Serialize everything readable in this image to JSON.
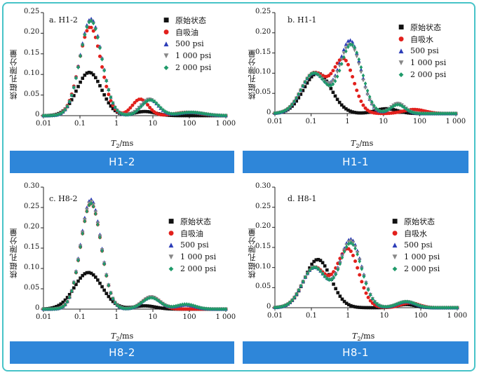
{
  "chart_data": [
    {
      "panel_label": "a. H1-2",
      "banner": "H1-2",
      "type": "scatter",
      "title": "",
      "xlabel": "T₂/ms",
      "ylabel": "核磁孔隙分量",
      "xscale": "log",
      "xlim": [
        0.01,
        1000
      ],
      "ylim": [
        0,
        0.25
      ],
      "xticks": [
        "0.01",
        "0.1",
        "1",
        "10",
        "100",
        "1 000"
      ],
      "yticks": [
        "0",
        "0.05",
        "0.10",
        "0.15",
        "0.20",
        "0.25"
      ],
      "legend": "top-right",
      "series": [
        {
          "name": "原始状态",
          "marker": "square",
          "color": "#111111",
          "peaks": [
            [
              0.18,
              0.105,
              0.34
            ],
            [
              6,
              0.01,
              0.3
            ]
          ]
        },
        {
          "name": "自吸油",
          "marker": "circle",
          "color": "#e2201c",
          "peaks": [
            [
              0.19,
              0.215,
              0.3
            ],
            [
              4.5,
              0.04,
              0.22
            ],
            [
              90,
              0.008,
              0.35
            ]
          ]
        },
        {
          "name": "500 psi",
          "marker": "triangle-up",
          "color": "#2c3db8",
          "peaks": [
            [
              0.2,
              0.235,
              0.3
            ],
            [
              8,
              0.04,
              0.24
            ],
            [
              110,
              0.008,
              0.35
            ]
          ]
        },
        {
          "name": "1 000 psi",
          "marker": "triangle-down",
          "color": "#888888",
          "peaks": [
            [
              0.2,
              0.23,
              0.3
            ],
            [
              8,
              0.04,
              0.24
            ],
            [
              110,
              0.008,
              0.35
            ]
          ]
        },
        {
          "name": "2 000 psi",
          "marker": "diamond",
          "color": "#1f9a6a",
          "peaks": [
            [
              0.2,
              0.23,
              0.3
            ],
            [
              8.5,
              0.038,
              0.24
            ],
            [
              110,
              0.008,
              0.35
            ]
          ]
        }
      ]
    },
    {
      "panel_label": "b. H1-1",
      "banner": "H1-1",
      "type": "scatter",
      "title": "",
      "xlabel": "T₂/ms",
      "ylabel": "核磁孔隙分量",
      "xscale": "log",
      "xlim": [
        0.01,
        1000
      ],
      "ylim": [
        0,
        0.25
      ],
      "xticks": [
        "0.01",
        "0.1",
        "1",
        "10",
        "100",
        "1 000"
      ],
      "yticks": [
        "0",
        "0.05",
        "0.10",
        "0.15",
        "0.20",
        "0.25"
      ],
      "legend": "top-right",
      "series": [
        {
          "name": "原始状态",
          "marker": "square",
          "color": "#111111",
          "peaks": [
            [
              0.15,
              0.1,
              0.38
            ],
            [
              12,
              0.012,
              0.3
            ]
          ]
        },
        {
          "name": "自吸水",
          "marker": "circle",
          "color": "#e2201c",
          "peaks": [
            [
              0.12,
              0.1,
              0.35
            ],
            [
              0.8,
              0.13,
              0.28
            ],
            [
              70,
              0.01,
              0.3
            ]
          ]
        },
        {
          "name": "500 psi",
          "marker": "triangle-up",
          "color": "#2c3db8",
          "peaks": [
            [
              0.12,
              0.1,
              0.35
            ],
            [
              1.2,
              0.18,
              0.3
            ],
            [
              25,
              0.025,
              0.2
            ]
          ]
        },
        {
          "name": "1 000 psi",
          "marker": "triangle-down",
          "color": "#888888",
          "peaks": [
            [
              0.12,
              0.1,
              0.35
            ],
            [
              1.2,
              0.17,
              0.3
            ],
            [
              25,
              0.025,
              0.2
            ]
          ]
        },
        {
          "name": "2 000 psi",
          "marker": "diamond",
          "color": "#1f9a6a",
          "peaks": [
            [
              0.12,
              0.1,
              0.35
            ],
            [
              1.3,
              0.17,
              0.3
            ],
            [
              25,
              0.022,
              0.2
            ]
          ]
        }
      ]
    },
    {
      "panel_label": "c. H8-2",
      "banner": "H8-2",
      "type": "scatter",
      "title": "",
      "xlabel": "T₂/ms",
      "ylabel": "核磁孔隙分量",
      "xscale": "log",
      "xlim": [
        0.01,
        1000
      ],
      "ylim": [
        0,
        0.3
      ],
      "xticks": [
        "0.01",
        "0.1",
        "1",
        "10",
        "100",
        "1 000"
      ],
      "yticks": [
        "0",
        "0.05",
        "0.10",
        "0.15",
        "0.20",
        "0.25",
        "0.30"
      ],
      "legend": "middle-right",
      "series": [
        {
          "name": "原始状态",
          "marker": "square",
          "color": "#111111",
          "peaks": [
            [
              0.17,
              0.09,
              0.38
            ],
            [
              6,
              0.008,
              0.3
            ]
          ]
        },
        {
          "name": "自吸油",
          "marker": "circle",
          "color": "#e2201c",
          "peaks": [
            [
              0.2,
              0.26,
              0.28
            ],
            [
              9,
              0.03,
              0.25
            ]
          ]
        },
        {
          "name": "500 psi",
          "marker": "triangle-up",
          "color": "#2c3db8",
          "peaks": [
            [
              0.2,
              0.27,
              0.28
            ],
            [
              9,
              0.03,
              0.25
            ],
            [
              80,
              0.01,
              0.25
            ]
          ]
        },
        {
          "name": "1 000 psi",
          "marker": "triangle-down",
          "color": "#888888",
          "peaks": [
            [
              0.2,
              0.265,
              0.28
            ],
            [
              9,
              0.03,
              0.25
            ],
            [
              80,
              0.01,
              0.25
            ]
          ]
        },
        {
          "name": "2 000 psi",
          "marker": "diamond",
          "color": "#1f9a6a",
          "peaks": [
            [
              0.2,
              0.26,
              0.28
            ],
            [
              9,
              0.028,
              0.25
            ],
            [
              80,
              0.012,
              0.25
            ]
          ]
        }
      ]
    },
    {
      "panel_label": "d. H8-1",
      "banner": "H8-1",
      "type": "scatter",
      "title": "",
      "xlabel": "T₂/ms",
      "ylabel": "核磁孔隙分量",
      "xscale": "log",
      "xlim": [
        0.01,
        1000
      ],
      "ylim": [
        0,
        0.3
      ],
      "xticks": [
        "0.01",
        "0.1",
        "1",
        "10",
        "100",
        "1 000"
      ],
      "yticks": [
        "0",
        "0.05",
        "0.10",
        "0.15",
        "0.20",
        "0.25",
        "0.30"
      ],
      "legend": "middle-right",
      "series": [
        {
          "name": "原始状态",
          "marker": "square",
          "color": "#111111",
          "peaks": [
            [
              0.15,
              0.12,
              0.36
            ],
            [
              40,
              0.008,
              0.25
            ]
          ]
        },
        {
          "name": "自吸水",
          "marker": "circle",
          "color": "#e2201c",
          "peaks": [
            [
              0.12,
              0.1,
              0.33
            ],
            [
              1.0,
              0.145,
              0.3
            ],
            [
              50,
              0.012,
              0.25
            ]
          ]
        },
        {
          "name": "500 psi",
          "marker": "triangle-up",
          "color": "#2c3db8",
          "peaks": [
            [
              0.12,
              0.1,
              0.33
            ],
            [
              1.2,
              0.17,
              0.3
            ],
            [
              40,
              0.015,
              0.25
            ]
          ]
        },
        {
          "name": "1 000 psi",
          "marker": "triangle-down",
          "color": "#888888",
          "peaks": [
            [
              0.12,
              0.1,
              0.33
            ],
            [
              1.2,
              0.165,
              0.3
            ],
            [
              40,
              0.015,
              0.25
            ]
          ]
        },
        {
          "name": "2 000 psi",
          "marker": "diamond",
          "color": "#1f9a6a",
          "peaks": [
            [
              0.12,
              0.1,
              0.33
            ],
            [
              1.2,
              0.16,
              0.3
            ],
            [
              40,
              0.015,
              0.25
            ]
          ]
        }
      ]
    }
  ]
}
